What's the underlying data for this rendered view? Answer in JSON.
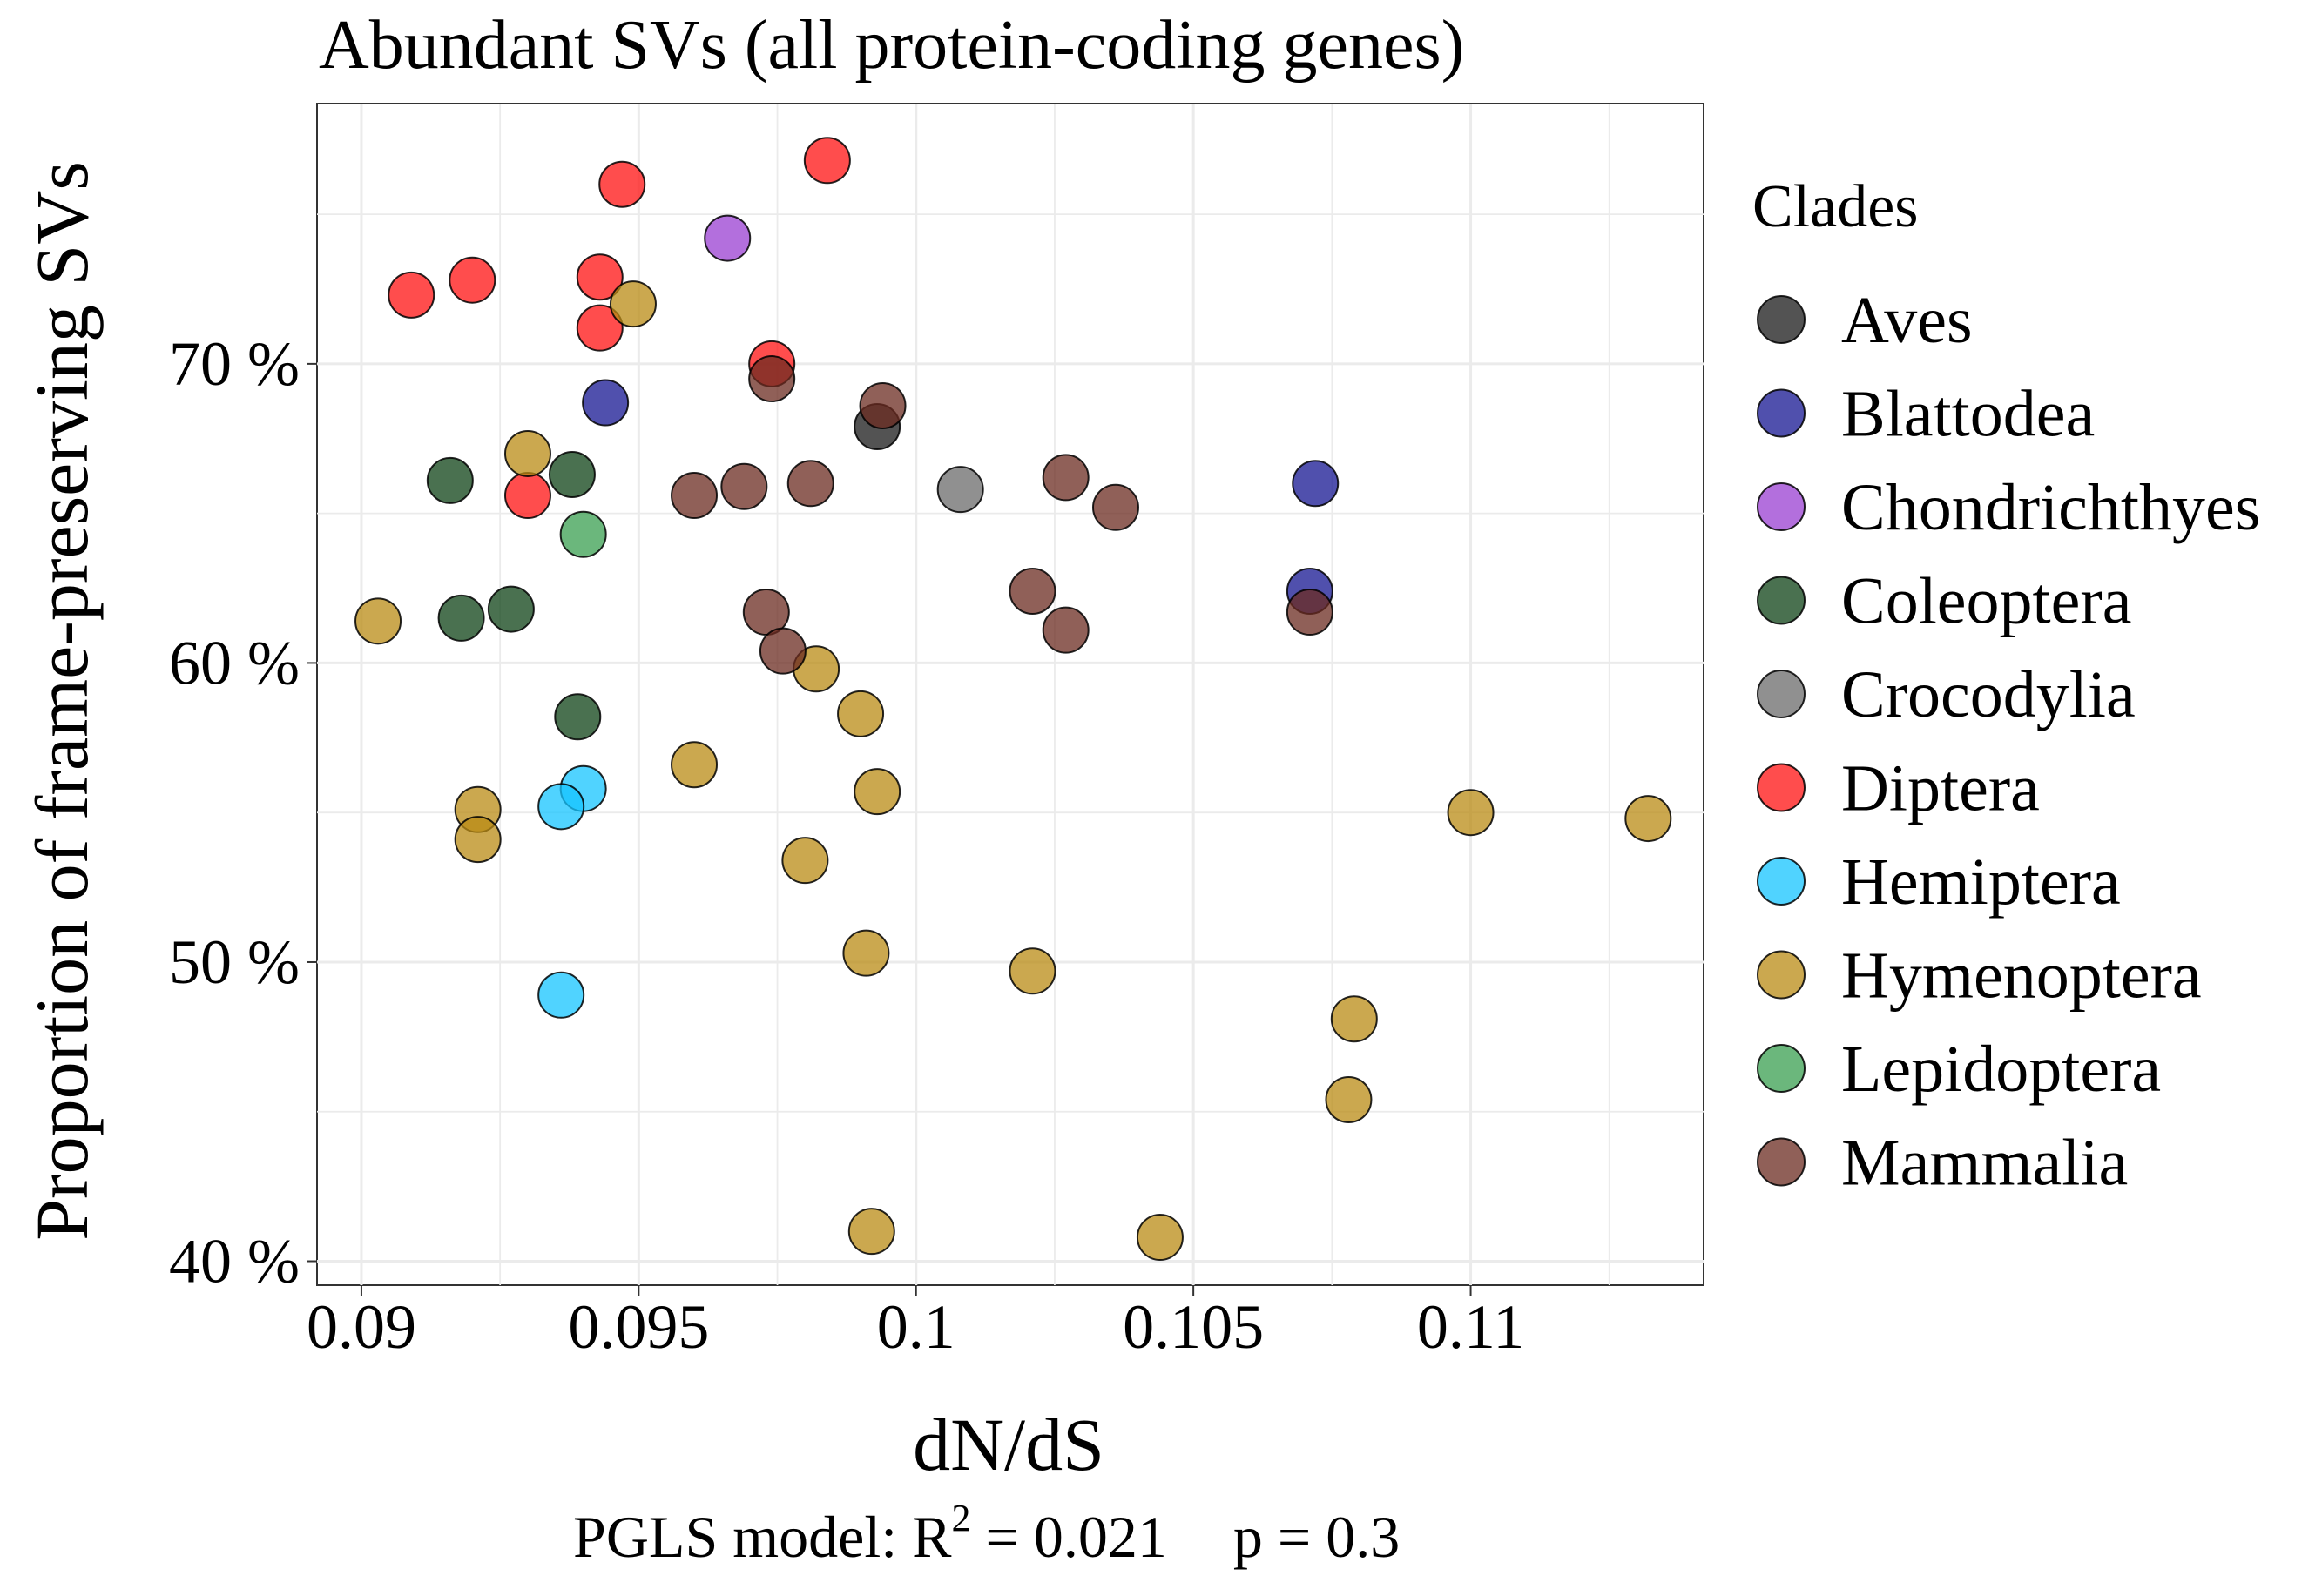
{
  "chart_data": {
    "type": "scatter",
    "title": "Abundant SVs (all protein-coding genes)",
    "xlabel": "dN/dS",
    "ylabel": "Proportion of frame-preserving SVs",
    "xlim": [
      0.0892,
      0.1142
    ],
    "ylim": [
      39.2,
      78.7
    ],
    "x_ticks": [
      0.09,
      0.095,
      0.1,
      0.105,
      0.11
    ],
    "x_tick_labels": [
      "0.09",
      "0.095",
      "0.1",
      "0.105",
      "0.11"
    ],
    "y_ticks": [
      40,
      50,
      60,
      70
    ],
    "y_tick_labels": [
      "40 %",
      "50 %",
      "60 %",
      "70 %"
    ],
    "grid": true,
    "legend": {
      "title": "Clades",
      "placement": "right"
    },
    "caption": {
      "prefix": "PGLS model: R",
      "superscript": "2",
      "suffix": " = 0.021",
      "p_text": "p = 0.3"
    },
    "series": [
      {
        "name": "Aves",
        "color": "#1a1a1a",
        "points": [
          [
            0.0993,
            67.9
          ]
        ]
      },
      {
        "name": "Blattodea",
        "color": "#161692",
        "points": [
          [
            0.0944,
            68.7
          ],
          [
            0.1072,
            66.0
          ],
          [
            0.1071,
            62.4
          ]
        ]
      },
      {
        "name": "Chondrichthyes",
        "color": "#9a3fd2",
        "points": [
          [
            0.0966,
            74.2
          ]
        ]
      },
      {
        "name": "Coleoptera",
        "color": "#0e4216",
        "points": [
          [
            0.0916,
            66.1
          ],
          [
            0.0938,
            66.3
          ],
          [
            0.0918,
            61.5
          ],
          [
            0.0927,
            61.8
          ],
          [
            0.0939,
            58.2
          ]
        ]
      },
      {
        "name": "Crocodylia",
        "color": "#6b6b6b",
        "points": [
          [
            0.1008,
            65.8
          ]
        ]
      },
      {
        "name": "Diptera",
        "color": "#ff1111",
        "points": [
          [
            0.0984,
            76.8
          ],
          [
            0.0947,
            76.0
          ],
          [
            0.0909,
            72.3
          ],
          [
            0.092,
            72.8
          ],
          [
            0.0943,
            72.9
          ],
          [
            0.0943,
            71.2
          ],
          [
            0.0974,
            70.0
          ],
          [
            0.093,
            65.6
          ]
        ]
      },
      {
        "name": "Hemiptera",
        "color": "#15c4ff",
        "points": [
          [
            0.094,
            55.8
          ],
          [
            0.0936,
            55.2
          ],
          [
            0.0936,
            48.9
          ]
        ]
      },
      {
        "name": "Hymenoptera",
        "color": "#b98b14",
        "points": [
          [
            0.0949,
            72.0
          ],
          [
            0.093,
            67.0
          ],
          [
            0.0903,
            61.4
          ],
          [
            0.0982,
            59.8
          ],
          [
            0.099,
            58.3
          ],
          [
            0.096,
            56.6
          ],
          [
            0.0993,
            55.7
          ],
          [
            0.0921,
            55.1
          ],
          [
            0.0921,
            54.1
          ],
          [
            0.098,
            53.4
          ],
          [
            0.0991,
            50.3
          ],
          [
            0.1021,
            49.7
          ],
          [
            0.11,
            55.0
          ],
          [
            0.1132,
            54.8
          ],
          [
            0.1079,
            48.1
          ],
          [
            0.1078,
            45.4
          ],
          [
            0.0992,
            41.0
          ],
          [
            0.1044,
            40.8
          ]
        ]
      },
      {
        "name": "Lepidoptera",
        "color": "#3a9f50",
        "points": [
          [
            0.094,
            64.3
          ]
        ]
      },
      {
        "name": "Mammalia",
        "color": "#6b2b20",
        "points": [
          [
            0.0974,
            69.5
          ],
          [
            0.0994,
            68.6
          ],
          [
            0.096,
            65.6
          ],
          [
            0.0969,
            65.9
          ],
          [
            0.0981,
            66.0
          ],
          [
            0.1027,
            66.2
          ],
          [
            0.1036,
            65.2
          ],
          [
            0.1021,
            62.4
          ],
          [
            0.1027,
            61.1
          ],
          [
            0.0973,
            61.7
          ],
          [
            0.0976,
            60.4
          ],
          [
            0.1071,
            61.7
          ]
        ]
      }
    ]
  }
}
